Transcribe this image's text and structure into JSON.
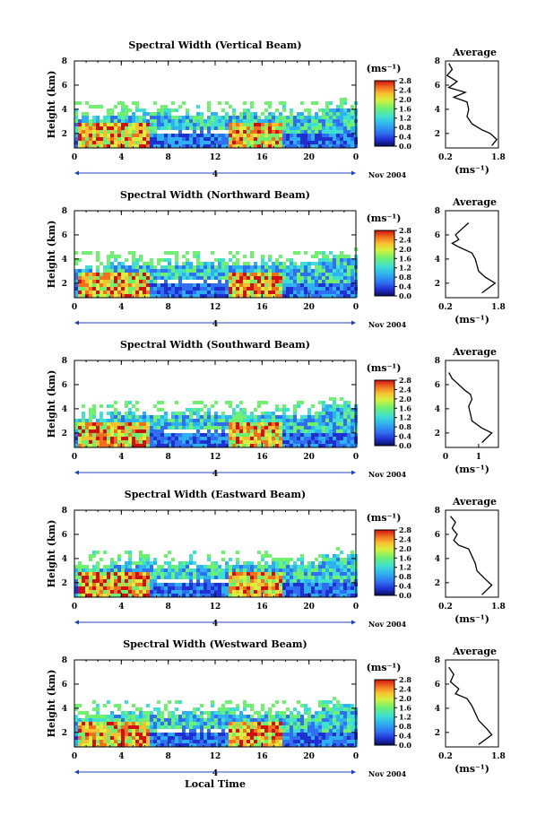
{
  "colors": {
    "colorbar_stops": [
      "#08105a",
      "#2030d0",
      "#2f6ff0",
      "#2fb0f0",
      "#40e0d0",
      "#70f070",
      "#d8f040",
      "#f8c030",
      "#f07020",
      "#d01010"
    ]
  },
  "chart_data": [
    {
      "type": "heatmap",
      "title": "Spectral Width (Vertical Beam)",
      "ylabel": "Height (km)",
      "xticks": [
        "0",
        "4",
        "8",
        "12",
        "16",
        "20",
        "0"
      ],
      "yticks": [
        "2",
        "4",
        "6",
        "8"
      ],
      "xlim": [
        0,
        24
      ],
      "ylim": [
        0.8,
        8
      ],
      "date_label": "4",
      "month_label": "Nov 2004",
      "unit": "(ms⁻¹)",
      "colorbar_ticks": [
        "0.0",
        "0.4",
        "0.8",
        "1.2",
        "1.6",
        "2.0",
        "2.4",
        "2.8"
      ],
      "avg": {
        "title": "Average",
        "xlabel": "(ms⁻¹)",
        "xticks": [
          "0.2",
          "1.8"
        ],
        "xlim": [
          0.2,
          1.8
        ],
        "yticks": [
          "2",
          "4",
          "6",
          "8"
        ],
        "ylim": [
          0.8,
          8
        ],
        "profile": [
          [
            1.6,
            1.0
          ],
          [
            1.75,
            1.5
          ],
          [
            1.55,
            2.0
          ],
          [
            1.3,
            2.3
          ],
          [
            1.0,
            2.8
          ],
          [
            0.85,
            3.4
          ],
          [
            0.9,
            4.0
          ],
          [
            0.85,
            4.6
          ],
          [
            0.45,
            5.0
          ],
          [
            0.8,
            5.4
          ],
          [
            0.3,
            5.8
          ],
          [
            0.55,
            6.3
          ],
          [
            0.25,
            6.8
          ],
          [
            0.4,
            7.3
          ],
          [
            0.3,
            7.8
          ]
        ]
      }
    },
    {
      "type": "heatmap",
      "title": "Spectral Width (Northward Beam)",
      "ylabel": "Height (km)",
      "xticks": [
        "0",
        "4",
        "8",
        "12",
        "16",
        "20",
        "0"
      ],
      "yticks": [
        "2",
        "4",
        "6",
        "8"
      ],
      "xlim": [
        0,
        24
      ],
      "ylim": [
        0.8,
        8
      ],
      "date_label": "4",
      "month_label": "Nov 2004",
      "unit": "(ms⁻¹)",
      "colorbar_ticks": [
        "0.0",
        "0.4",
        "0.8",
        "1.2",
        "1.6",
        "2.0",
        "2.4",
        "2.8"
      ],
      "avg": {
        "title": "Average",
        "xlabel": "(ms⁻¹)",
        "xticks": [
          "0.2",
          "1.8"
        ],
        "xlim": [
          0.2,
          1.8
        ],
        "yticks": [
          "2",
          "4",
          "6",
          "8"
        ],
        "ylim": [
          0.8,
          8
        ],
        "profile": [
          [
            1.3,
            1.2
          ],
          [
            1.7,
            2.0
          ],
          [
            1.4,
            2.5
          ],
          [
            1.2,
            3.0
          ],
          [
            1.15,
            3.5
          ],
          [
            1.1,
            4.0
          ],
          [
            1.0,
            4.5
          ],
          [
            0.6,
            5.0
          ],
          [
            0.4,
            5.3
          ],
          [
            0.6,
            5.6
          ],
          [
            0.5,
            6.0
          ],
          [
            0.7,
            6.5
          ],
          [
            0.9,
            7.0
          ]
        ]
      }
    },
    {
      "type": "heatmap",
      "title": "Spectral Width (Southward Beam)",
      "ylabel": "Height (km)",
      "xticks": [
        "0",
        "4",
        "8",
        "12",
        "16",
        "20",
        "0"
      ],
      "yticks": [
        "2",
        "4",
        "6",
        "8"
      ],
      "xlim": [
        0,
        24
      ],
      "ylim": [
        0.8,
        8
      ],
      "date_label": "4",
      "month_label": "Nov 2004",
      "unit": "(ms⁻¹)",
      "colorbar_ticks": [
        "0.0",
        "0.4",
        "0.8",
        "1.2",
        "1.6",
        "2.0",
        "2.4",
        "2.8"
      ],
      "avg": {
        "title": "Average",
        "xlabel": "(ms⁻¹)",
        "xticks": [
          "0",
          "1"
        ],
        "xlim": [
          0,
          1.6
        ],
        "yticks": [
          "2",
          "4",
          "6",
          "8"
        ],
        "ylim": [
          0.8,
          8
        ],
        "profile": [
          [
            1.1,
            1.2
          ],
          [
            1.4,
            2.0
          ],
          [
            1.1,
            2.4
          ],
          [
            0.8,
            3.0
          ],
          [
            0.75,
            3.6
          ],
          [
            0.7,
            4.2
          ],
          [
            0.8,
            4.8
          ],
          [
            0.75,
            5.2
          ],
          [
            0.6,
            5.5
          ],
          [
            0.2,
            6.5
          ],
          [
            0.1,
            7.0
          ]
        ]
      }
    },
    {
      "type": "heatmap",
      "title": "Spectral Width (Eastward Beam)",
      "ylabel": "Height (km)",
      "xticks": [
        "0",
        "4",
        "8",
        "12",
        "16",
        "20",
        "0"
      ],
      "yticks": [
        "2",
        "4",
        "6",
        "8"
      ],
      "xlim": [
        0,
        24
      ],
      "ylim": [
        0.8,
        8
      ],
      "date_label": "4",
      "month_label": "Nov 2004",
      "unit": "(ms⁻¹)",
      "colorbar_ticks": [
        "0.0",
        "0.4",
        "0.8",
        "1.2",
        "1.6",
        "2.0",
        "2.4",
        "2.8"
      ],
      "avg": {
        "title": "Average",
        "xlabel": "(ms⁻¹)",
        "xticks": [
          "0.2",
          "1.8"
        ],
        "xlim": [
          0.2,
          1.8
        ],
        "yticks": [
          "2",
          "4",
          "6",
          "8"
        ],
        "ylim": [
          0.8,
          8
        ],
        "profile": [
          [
            1.3,
            1.0
          ],
          [
            1.6,
            1.8
          ],
          [
            1.4,
            2.3
          ],
          [
            1.15,
            3.0
          ],
          [
            1.1,
            3.6
          ],
          [
            1.0,
            4.2
          ],
          [
            0.9,
            4.8
          ],
          [
            0.6,
            5.1
          ],
          [
            0.45,
            5.5
          ],
          [
            0.55,
            6.0
          ],
          [
            0.4,
            6.5
          ],
          [
            0.5,
            7.0
          ],
          [
            0.35,
            7.5
          ]
        ]
      }
    },
    {
      "type": "heatmap",
      "title": "Spectral Width (Westward Beam)",
      "ylabel": "Height (km)",
      "xticks": [
        "0",
        "4",
        "8",
        "12",
        "16",
        "20",
        "0"
      ],
      "yticks": [
        "2",
        "4",
        "6",
        "8"
      ],
      "xlim": [
        0,
        24
      ],
      "ylim": [
        0.8,
        8
      ],
      "date_label": "4",
      "month_label": "Nov 2004",
      "unit": "(ms⁻¹)",
      "colorbar_ticks": [
        "0.0",
        "0.4",
        "0.8",
        "1.2",
        "1.6",
        "2.0",
        "2.4",
        "2.8"
      ],
      "avg": {
        "title": "Average",
        "xlabel": "(ms⁻¹)",
        "xticks": [
          "0.2",
          "1.8"
        ],
        "xlim": [
          0.2,
          1.8
        ],
        "yticks": [
          "2",
          "4",
          "6",
          "8"
        ],
        "ylim": [
          0.8,
          8
        ],
        "profile": [
          [
            1.2,
            1.0
          ],
          [
            1.6,
            1.8
          ],
          [
            1.45,
            2.3
          ],
          [
            1.2,
            3.0
          ],
          [
            1.1,
            3.6
          ],
          [
            1.0,
            4.2
          ],
          [
            0.85,
            4.8
          ],
          [
            0.5,
            5.2
          ],
          [
            0.6,
            5.6
          ],
          [
            0.35,
            6.2
          ],
          [
            0.45,
            6.8
          ],
          [
            0.3,
            7.4
          ]
        ]
      }
    }
  ],
  "common_xlabel": "Local Time"
}
